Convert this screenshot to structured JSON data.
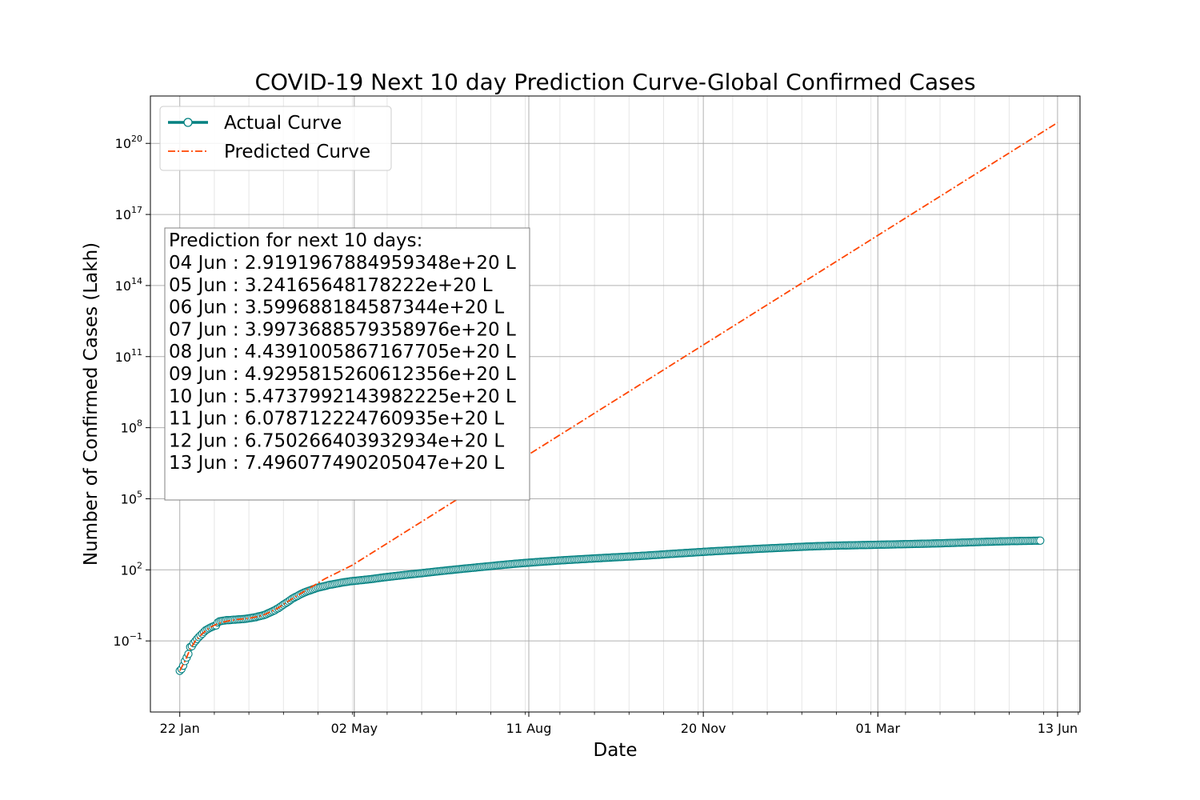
{
  "chart_data": {
    "type": "line",
    "title": "COVID-19 Next 10 day Prediction Curve-Global Confirmed Cases",
    "xlabel": "Date",
    "ylabel": "Number of Confirmed Cases (Lakh)",
    "y_scale": "log",
    "xlim": [
      "2020-01-05",
      "2021-06-26"
    ],
    "ylim": [
      0.0001,
      1e+22
    ],
    "x_ticks": [
      {
        "date": "2020-01-22",
        "label": "22 Jan"
      },
      {
        "date": "2020-05-02",
        "label": "02 May"
      },
      {
        "date": "2020-08-11",
        "label": "11 Aug"
      },
      {
        "date": "2020-11-20",
        "label": "20 Nov"
      },
      {
        "date": "2021-03-01",
        "label": "01 Mar"
      },
      {
        "date": "2021-06-13",
        "label": "13 Jun"
      }
    ],
    "y_ticks": [
      {
        "value": 0.1,
        "base": "10",
        "exp": "−1"
      },
      {
        "value": 100,
        "base": "10",
        "exp": "2"
      },
      {
        "value": 100000,
        "base": "10",
        "exp": "5"
      },
      {
        "value": 100000000,
        "base": "10",
        "exp": "8"
      },
      {
        "value": 100000000000,
        "base": "10",
        "exp": "11"
      },
      {
        "value": 100000000000000,
        "base": "10",
        "exp": "14"
      },
      {
        "value": 100000000000000000,
        "base": "10",
        "exp": "17"
      },
      {
        "value": 1e+20,
        "base": "10",
        "exp": "20"
      }
    ],
    "grid": true,
    "legend_position": "upper-left",
    "series": [
      {
        "name": "Actual Curve",
        "color": "#008080",
        "style": "solid-with-circle-markers",
        "points": [
          [
            "2020-01-22",
            0.0055
          ],
          [
            "2020-01-23",
            0.0065
          ],
          [
            "2020-01-24",
            0.009
          ],
          [
            "2020-01-25",
            0.014
          ],
          [
            "2020-01-26",
            0.02
          ],
          [
            "2020-01-27",
            0.028
          ],
          [
            "2020-01-28",
            0.055
          ],
          [
            "2020-01-29",
            0.06
          ],
          [
            "2020-01-30",
            0.08
          ],
          [
            "2020-01-31",
            0.098
          ],
          [
            "2020-02-01",
            0.12
          ],
          [
            "2020-02-02",
            0.145
          ],
          [
            "2020-02-03",
            0.17
          ],
          [
            "2020-02-04",
            0.2
          ],
          [
            "2020-02-05",
            0.24
          ],
          [
            "2020-02-06",
            0.28
          ],
          [
            "2020-02-07",
            0.31
          ],
          [
            "2020-02-08",
            0.34
          ],
          [
            "2020-02-09",
            0.37
          ],
          [
            "2020-02-10",
            0.4
          ],
          [
            "2020-02-11",
            0.43
          ],
          [
            "2020-02-12",
            0.45
          ],
          [
            "2020-02-13",
            0.6
          ],
          [
            "2020-02-14",
            0.67
          ],
          [
            "2020-02-15",
            0.69
          ],
          [
            "2020-02-16",
            0.71
          ],
          [
            "2020-02-17",
            0.73
          ],
          [
            "2020-02-18",
            0.75
          ],
          [
            "2020-02-19",
            0.75
          ],
          [
            "2020-02-20",
            0.76
          ],
          [
            "2020-02-21",
            0.77
          ],
          [
            "2020-02-22",
            0.79
          ],
          [
            "2020-02-23",
            0.79
          ],
          [
            "2020-02-24",
            0.8
          ],
          [
            "2020-02-25",
            0.81
          ],
          [
            "2020-02-26",
            0.82
          ],
          [
            "2020-02-27",
            0.83
          ],
          [
            "2020-02-28",
            0.84
          ],
          [
            "2020-02-29",
            0.86
          ],
          [
            "2020-03-01",
            0.88
          ],
          [
            "2020-03-02",
            0.9
          ],
          [
            "2020-03-03",
            0.93
          ],
          [
            "2020-03-04",
            0.95
          ],
          [
            "2020-03-05",
            0.98
          ],
          [
            "2020-03-06",
            1.0
          ],
          [
            "2020-03-07",
            1.06
          ],
          [
            "2020-03-08",
            1.1
          ],
          [
            "2020-03-09",
            1.14
          ],
          [
            "2020-03-10",
            1.19
          ],
          [
            "2020-03-11",
            1.26
          ],
          [
            "2020-03-12",
            1.34
          ],
          [
            "2020-03-13",
            1.46
          ],
          [
            "2020-03-14",
            1.56
          ],
          [
            "2020-03-15",
            1.69
          ],
          [
            "2020-03-16",
            1.83
          ],
          [
            "2020-03-17",
            1.98
          ],
          [
            "2020-03-18",
            2.2
          ],
          [
            "2020-03-19",
            2.4
          ],
          [
            "2020-03-20",
            2.7
          ],
          [
            "2020-03-21",
            3.0
          ],
          [
            "2020-03-22",
            3.4
          ],
          [
            "2020-03-23",
            3.8
          ],
          [
            "2020-03-24",
            4.2
          ],
          [
            "2020-03-25",
            4.7
          ],
          [
            "2020-03-26",
            5.3
          ],
          [
            "2020-03-27",
            6.0
          ],
          [
            "2020-03-28",
            6.6
          ],
          [
            "2020-03-29",
            7.2
          ],
          [
            "2020-03-30",
            7.8
          ],
          [
            "2020-03-31",
            8.6
          ],
          [
            "2020-04-01",
            9.4
          ],
          [
            "2020-04-02",
            10.2
          ],
          [
            "2020-04-03",
            11.0
          ],
          [
            "2020-04-04",
            11.8
          ],
          [
            "2020-04-05",
            12.6
          ],
          [
            "2020-04-06",
            13.3
          ],
          [
            "2020-04-07",
            14.1
          ],
          [
            "2020-04-08",
            15.0
          ],
          [
            "2020-04-09",
            15.9
          ],
          [
            "2020-04-10",
            16.9
          ],
          [
            "2020-04-11",
            17.8
          ],
          [
            "2020-04-12",
            18.5
          ],
          [
            "2020-04-13",
            19.2
          ],
          [
            "2020-04-14",
            20.0
          ],
          [
            "2020-04-15",
            20.8
          ],
          [
            "2020-04-16",
            21.7
          ],
          [
            "2020-04-17",
            22.7
          ],
          [
            "2020-04-18",
            23.5
          ],
          [
            "2020-04-19",
            24.1
          ],
          [
            "2020-04-20",
            24.8
          ],
          [
            "2020-04-21",
            25.6
          ],
          [
            "2020-04-22",
            26.4
          ],
          [
            "2020-04-23",
            27.3
          ],
          [
            "2020-04-24",
            28.3
          ],
          [
            "2020-04-25",
            29.2
          ],
          [
            "2020-04-26",
            29.9
          ],
          [
            "2020-04-27",
            30.6
          ],
          [
            "2020-04-28",
            31.4
          ],
          [
            "2020-04-29",
            32.2
          ],
          [
            "2020-04-30",
            33.1
          ],
          [
            "2020-05-05",
            36.0
          ],
          [
            "2020-05-12",
            41.0
          ],
          [
            "2020-05-19",
            48.0
          ],
          [
            "2020-05-26",
            55.0
          ],
          [
            "2020-06-02",
            63.0
          ],
          [
            "2020-06-09",
            71.0
          ],
          [
            "2020-06-16",
            81.0
          ],
          [
            "2020-06-23",
            92.0
          ],
          [
            "2020-06-30",
            104.0
          ],
          [
            "2020-07-07",
            117.0
          ],
          [
            "2020-07-14",
            131.0
          ],
          [
            "2020-07-21",
            147.0
          ],
          [
            "2020-07-28",
            165.0
          ],
          [
            "2020-08-04",
            183.0
          ],
          [
            "2020-08-11",
            201.0
          ],
          [
            "2020-08-18",
            219.0
          ],
          [
            "2020-08-25",
            238.0
          ],
          [
            "2020-09-01",
            257.0
          ],
          [
            "2020-09-08",
            275.0
          ],
          [
            "2020-09-15",
            295.0
          ],
          [
            "2020-09-22",
            315.0
          ],
          [
            "2020-09-29",
            336.0
          ],
          [
            "2020-10-06",
            357.0
          ],
          [
            "2020-10-13",
            381.0
          ],
          [
            "2020-10-20",
            409.0
          ],
          [
            "2020-10-27",
            443.0
          ],
          [
            "2020-11-03",
            479.0
          ],
          [
            "2020-11-10",
            516.0
          ],
          [
            "2020-11-17",
            556.0
          ],
          [
            "2020-11-24",
            598.0
          ],
          [
            "2020-12-01",
            638.0
          ],
          [
            "2020-12-08",
            681.0
          ],
          [
            "2020-12-15",
            727.0
          ],
          [
            "2020-12-22",
            773.0
          ],
          [
            "2020-12-29",
            817.0
          ],
          [
            "2021-01-05",
            862.0
          ],
          [
            "2021-01-12",
            914.0
          ],
          [
            "2021-01-19",
            961.0
          ],
          [
            "2021-01-26",
            1003.0
          ],
          [
            "2021-02-02",
            1040.0
          ],
          [
            "2021-02-09",
            1068.0
          ],
          [
            "2021-02-16",
            1095.0
          ],
          [
            "2021-02-23",
            1122.0
          ],
          [
            "2021-03-02",
            1150.0
          ],
          [
            "2021-03-09",
            1180.0
          ],
          [
            "2021-03-16",
            1210.0
          ],
          [
            "2021-03-23",
            1245.0
          ],
          [
            "2021-03-30",
            1280.0
          ],
          [
            "2021-04-06",
            1320.0
          ],
          [
            "2021-04-13",
            1370.0
          ],
          [
            "2021-04-20",
            1425.0
          ],
          [
            "2021-04-27",
            1480.0
          ],
          [
            "2021-05-04",
            1535.0
          ],
          [
            "2021-05-11",
            1590.0
          ],
          [
            "2021-05-18",
            1635.0
          ],
          [
            "2021-05-25",
            1670.0
          ],
          [
            "2021-06-01",
            1700.0
          ],
          [
            "2021-06-03",
            1710.0
          ]
        ]
      },
      {
        "name": "Predicted Curve",
        "color": "#ff4500",
        "style": "dash-dot",
        "points": [
          [
            "2020-01-22",
            0.0055
          ],
          [
            "2020-01-25",
            0.014
          ],
          [
            "2020-01-28",
            0.045
          ],
          [
            "2020-01-31",
            0.1
          ],
          [
            "2020-02-04",
            0.2
          ],
          [
            "2020-02-08",
            0.35
          ],
          [
            "2020-02-12",
            0.5
          ],
          [
            "2020-02-16",
            0.62
          ],
          [
            "2020-02-20",
            0.72
          ],
          [
            "2020-02-24",
            0.8
          ],
          [
            "2020-02-28",
            0.86
          ],
          [
            "2020-03-03",
            0.93
          ],
          [
            "2020-03-07",
            1.06
          ],
          [
            "2020-03-11",
            1.3
          ],
          [
            "2020-03-15",
            1.75
          ],
          [
            "2020-03-19",
            2.5
          ],
          [
            "2020-03-23",
            3.9
          ],
          [
            "2020-03-27",
            6.0
          ],
          [
            "2020-03-31",
            9.0
          ],
          [
            "2020-04-05",
            15.0
          ],
          [
            "2020-04-15",
            42.0
          ],
          [
            "2020-05-01",
            160.0
          ],
          [
            "2021-06-13",
            7.496077490205047e+20
          ]
        ]
      }
    ],
    "annotation": {
      "heading": "Prediction for next 10 days:",
      "lines": [
        "04 Jun : 2.9191967884959348e+20 L",
        "05 Jun : 3.24165648178222e+20 L",
        "06 Jun : 3.599688184587344e+20 L",
        "07 Jun : 3.9973688579358976e+20 L",
        "08 Jun : 4.4391005867167705e+20 L",
        "09 Jun : 4.9295815260612356e+20 L",
        "10 Jun : 5.4737992143982225e+20 L",
        "11 Jun : 6.078712224760935e+20 L",
        "12 Jun : 6.750266403932934e+20 L",
        "13 Jun : 7.496077490205047e+20 L"
      ]
    }
  }
}
